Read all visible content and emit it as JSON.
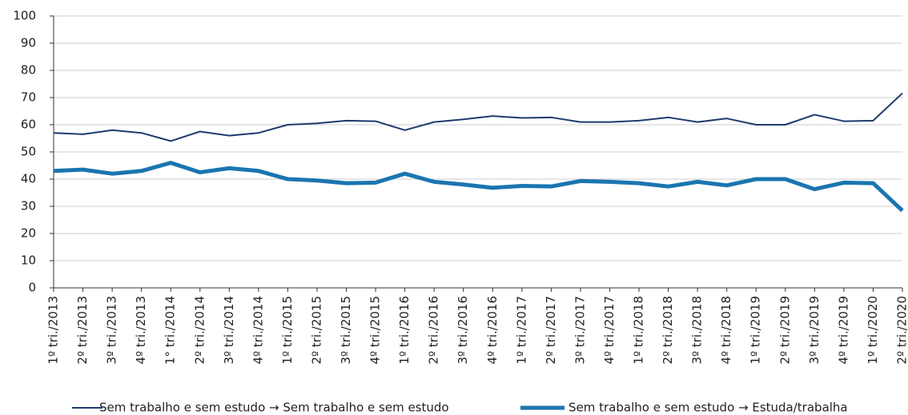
{
  "chart_data": {
    "type": "line",
    "categories": [
      "1º tri./2013",
      "2º tri./2013",
      "3º tri./2013",
      "4º tri./2013",
      "1° tri./2014",
      "2º tri./2014",
      "3º tri./2014",
      "4º tri./2014",
      "1º tri./2015",
      "2º tri./2015",
      "3º tri./2015",
      "4º tri./2015",
      "1º tri./2016",
      "2º tri./2016",
      "3º tri./2016",
      "4º tri./2016",
      "1º tri./2017",
      "2º tri./2017",
      "3º tri./2017",
      "4º tri./2017",
      "1º tri./2018",
      "2º tri./2018",
      "3º tri./2018",
      "4º tri./2018",
      "1º tri./2019",
      "2º tri./2019",
      "3º tri./2019",
      "4º tri./2019",
      "1º tri./2020",
      "2º tri./2020"
    ],
    "series": [
      {
        "name": "Sem trabalho e sem estudo → Sem trabalho e sem estudo",
        "color": "#1f3a6e",
        "width": 2,
        "values": [
          57,
          56.5,
          58,
          57,
          54,
          57.5,
          56,
          57,
          60,
          60.5,
          61.5,
          61.3,
          58,
          61,
          62,
          63.2,
          62.5,
          62.7,
          61,
          61,
          61.5,
          62.7,
          61,
          62.3,
          60,
          60,
          63.7,
          61.3,
          61.5,
          71.6
        ]
      },
      {
        "name": "Sem trabalho e sem estudo → Estuda/trabalha",
        "color": "#1a75b0",
        "width": 5,
        "values": [
          43,
          43.5,
          42,
          43,
          46,
          42.5,
          44,
          43,
          40,
          39.5,
          38.5,
          38.7,
          42,
          39,
          38,
          36.8,
          37.5,
          37.3,
          39.3,
          39,
          38.5,
          37.3,
          39,
          37.7,
          40,
          40,
          36.3,
          38.7,
          38.5,
          28.4
        ]
      }
    ],
    "ylim": [
      0,
      100
    ],
    "yticks": [
      0,
      10,
      20,
      30,
      40,
      50,
      60,
      70,
      80,
      90,
      100
    ],
    "grid": true
  }
}
